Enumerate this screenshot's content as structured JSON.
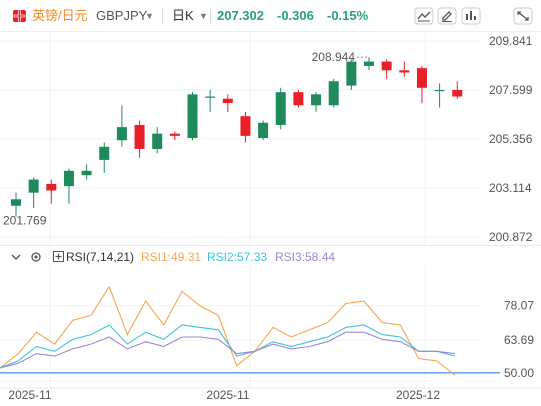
{
  "toolbar": {
    "symbol_name": "英镑/日元",
    "symbol_code": "GBPJPY",
    "symbol_caret": "▼",
    "period": "日K",
    "period_caret": "▼",
    "last_price": "207.302",
    "change": "-0.306",
    "change_pct": "-0.15%",
    "buttons": [
      "chart-type-icon",
      "draw-icon",
      "indicator-icon",
      "fullscreen-icon"
    ]
  },
  "chart_data": [
    {
      "type": "candlestick",
      "title": "",
      "y_ticks": [
        "209.841",
        "207.599",
        "205.356",
        "203.114",
        "200.872"
      ],
      "y_range": [
        200.872,
        209.841
      ],
      "annotations": {
        "high": "208.944",
        "low": "201.769"
      },
      "colors": {
        "up": "#1f8a5c",
        "down": "#e8202a"
      },
      "candles": [
        {
          "o": 202.3,
          "h": 202.9,
          "l": 201.8,
          "c": 202.6
        },
        {
          "o": 202.9,
          "h": 203.6,
          "l": 202.2,
          "c": 203.5
        },
        {
          "o": 203.3,
          "h": 203.5,
          "l": 202.4,
          "c": 203.0
        },
        {
          "o": 203.2,
          "h": 204.0,
          "l": 202.4,
          "c": 203.9
        },
        {
          "o": 203.7,
          "h": 204.2,
          "l": 203.5,
          "c": 203.9
        },
        {
          "o": 204.4,
          "h": 205.2,
          "l": 203.8,
          "c": 205.0
        },
        {
          "o": 205.3,
          "h": 206.9,
          "l": 205.0,
          "c": 205.9
        },
        {
          "o": 206.0,
          "h": 206.2,
          "l": 204.5,
          "c": 204.9
        },
        {
          "o": 204.9,
          "h": 205.9,
          "l": 204.7,
          "c": 205.6
        },
        {
          "o": 205.6,
          "h": 205.7,
          "l": 205.3,
          "c": 205.5
        },
        {
          "o": 205.4,
          "h": 207.5,
          "l": 205.3,
          "c": 207.4
        },
        {
          "o": 207.3,
          "h": 207.6,
          "l": 206.6,
          "c": 207.3
        },
        {
          "o": 207.2,
          "h": 207.4,
          "l": 206.6,
          "c": 207.0
        },
        {
          "o": 206.4,
          "h": 206.6,
          "l": 205.2,
          "c": 205.5
        },
        {
          "o": 205.4,
          "h": 206.2,
          "l": 205.3,
          "c": 206.1
        },
        {
          "o": 206.0,
          "h": 207.7,
          "l": 205.8,
          "c": 207.5
        },
        {
          "o": 207.5,
          "h": 207.6,
          "l": 206.8,
          "c": 206.9
        },
        {
          "o": 206.9,
          "h": 207.5,
          "l": 206.6,
          "c": 207.4
        },
        {
          "o": 206.9,
          "h": 208.1,
          "l": 206.8,
          "c": 208.0
        },
        {
          "o": 207.8,
          "h": 209.0,
          "l": 207.6,
          "c": 208.9
        },
        {
          "o": 208.7,
          "h": 209.1,
          "l": 208.5,
          "c": 208.9
        },
        {
          "o": 208.9,
          "h": 209.0,
          "l": 208.1,
          "c": 208.5
        },
        {
          "o": 208.5,
          "h": 208.9,
          "l": 208.2,
          "c": 208.4
        },
        {
          "o": 208.6,
          "h": 208.7,
          "l": 207.0,
          "c": 207.7
        },
        {
          "o": 207.6,
          "h": 207.9,
          "l": 206.8,
          "c": 207.6
        },
        {
          "o": 207.6,
          "h": 208.0,
          "l": 207.2,
          "c": 207.3
        }
      ]
    },
    {
      "type": "line",
      "title": "RSI(7,14,21)",
      "y_ticks": [
        "78.07",
        "63.69",
        "49.31"
      ],
      "current_marker": "50.00",
      "x_tick_labels": [
        "2025-11",
        "2025-11",
        "2025-12"
      ],
      "series": [
        {
          "name": "RSI1",
          "label": "RSI1:49.31",
          "color": "#f4a74f",
          "values": [
            52,
            58,
            67,
            62,
            72,
            74,
            86,
            66,
            80,
            70,
            84,
            78,
            74,
            53,
            59,
            69,
            65,
            68,
            71,
            79,
            80,
            71,
            70,
            56,
            55,
            49
          ]
        },
        {
          "name": "RSI2",
          "label": "RSI2:57.33",
          "color": "#3fc4d6",
          "values": [
            52,
            55,
            61,
            59,
            64,
            66,
            70,
            62,
            67,
            64,
            70,
            69,
            68,
            57,
            59,
            63,
            61,
            63,
            65,
            69,
            70,
            66,
            65,
            59,
            59,
            57
          ]
        },
        {
          "name": "RSI3",
          "label": "RSI3:58.44",
          "color": "#9c86d9",
          "values": [
            52,
            54,
            58,
            57,
            60,
            62,
            65,
            60,
            63,
            61,
            65,
            65,
            64,
            58,
            59,
            62,
            60,
            61,
            63,
            67,
            67,
            64,
            63,
            59,
            59,
            58
          ]
        }
      ]
    }
  ]
}
